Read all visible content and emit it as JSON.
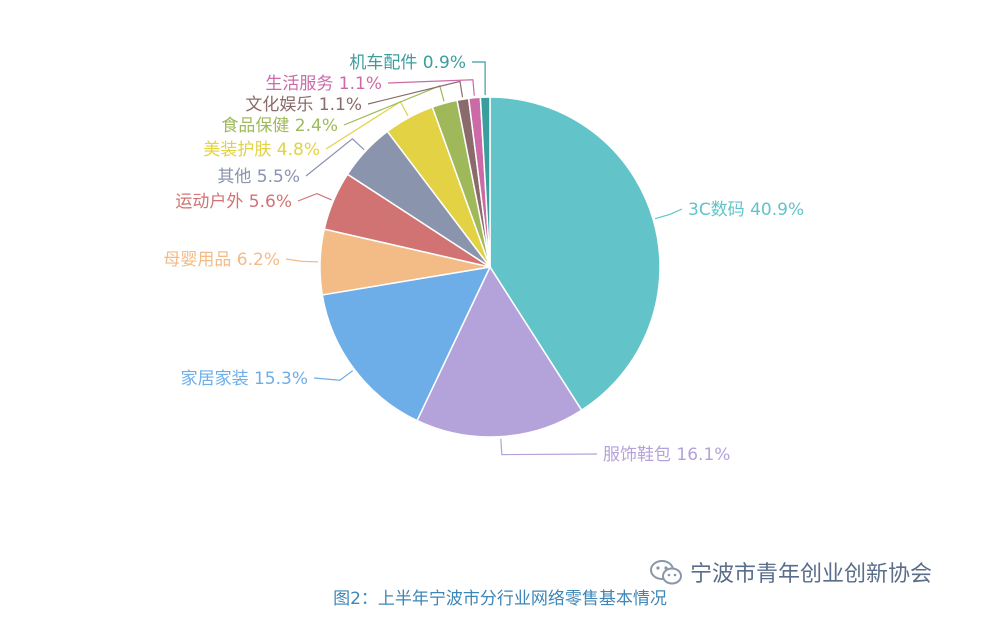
{
  "chart_data": {
    "type": "pie",
    "start_angle_deg": 0,
    "slices": [
      {
        "label": "3C数码",
        "value": 40.9,
        "display": "40.9%",
        "color": "#62c4c8",
        "side": "right"
      },
      {
        "label": "服饰鞋包",
        "value": 16.1,
        "display": "16.1%",
        "color": "#b4a2da",
        "side": "right"
      },
      {
        "label": "家居家装",
        "value": 15.3,
        "display": "15.3%",
        "color": "#6eaee8",
        "side": "left"
      },
      {
        "label": "母婴用品",
        "value": 6.2,
        "display": "6.2%",
        "color": "#f3bb86",
        "side": "left"
      },
      {
        "label": "运动户外",
        "value": 5.6,
        "display": "5.6%",
        "color": "#d27373",
        "side": "left"
      },
      {
        "label": "其他",
        "value": 5.5,
        "display": "5.5%",
        "color": "#8a94ad",
        "side": "left"
      },
      {
        "label": "美装护肤",
        "value": 4.8,
        "display": "4.8%",
        "color": "#e2d244",
        "side": "left"
      },
      {
        "label": "食品保健",
        "value": 2.4,
        "display": "2.4%",
        "color": "#9fb95a",
        "side": "left"
      },
      {
        "label": "文化娱乐",
        "value": 1.1,
        "display": "1.1%",
        "color": "#8a6a6a",
        "side": "left"
      },
      {
        "label": "生活服务",
        "value": 1.1,
        "display": "1.1%",
        "color": "#cc6aa8",
        "side": "left"
      },
      {
        "label": "机车配件",
        "value": 0.9,
        "display": "0.9%",
        "color": "#3a9e9c",
        "side": "left"
      }
    ]
  },
  "watermark": {
    "text": "宁波市青年创业创新协会",
    "icon": "wechat-icon"
  },
  "caption": "图2：上半年宁波市分行业网络零售基本情况"
}
